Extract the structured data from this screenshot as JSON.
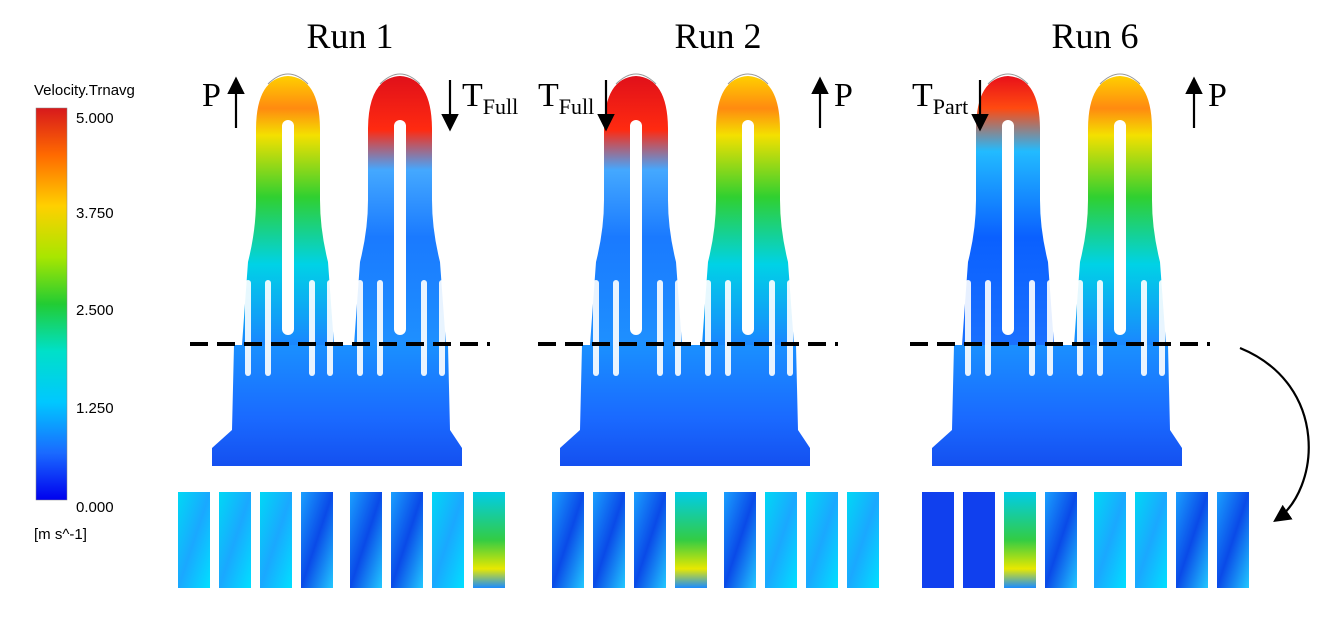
{
  "legend": {
    "title": "Velocity.Trnavg",
    "ticks": [
      "5.000",
      "3.750",
      "2.500",
      "1.250",
      "0.000"
    ],
    "unit": "[m s^-1]",
    "colors": [
      "#d7191c",
      "#ff7f00",
      "#ffff00",
      "#00cc33",
      "#00e5ff",
      "#1a66ff",
      "#0000ff"
    ]
  },
  "panels": [
    {
      "title": "Run 1",
      "left_label": {
        "main": "P",
        "sub": ""
      },
      "right_label": {
        "main": "T",
        "sub": "Full"
      }
    },
    {
      "title": "Run 2",
      "left_label": {
        "main": "T",
        "sub": "Full"
      },
      "right_label": {
        "main": "P",
        "sub": ""
      }
    },
    {
      "title": "Run 6",
      "left_label": {
        "main": "T",
        "sub": "Part"
      },
      "right_label": {
        "main": "P",
        "sub": ""
      }
    }
  ],
  "icons": {
    "up": "arrow-up-icon",
    "down": "arrow-down-icon",
    "curve": "curved-arrow-icon"
  }
}
